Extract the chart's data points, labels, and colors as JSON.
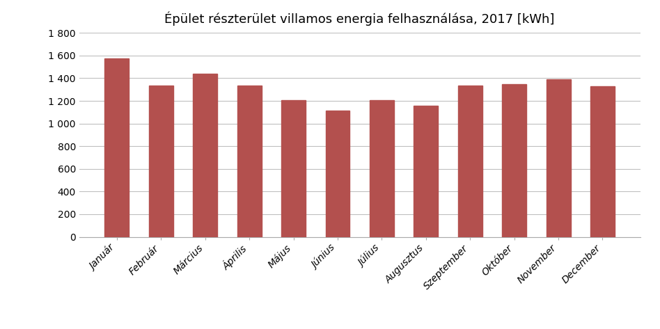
{
  "title": "Épület részterület villamos energia felhasználása, 2017 [kWh]",
  "categories": [
    "Január",
    "Február",
    "Március",
    "Április",
    "Május",
    "Június",
    "Július",
    "Augusztus",
    "Szeptember",
    "Október",
    "November",
    "December"
  ],
  "values": [
    1575,
    1335,
    1440,
    1335,
    1205,
    1115,
    1205,
    1155,
    1335,
    1345,
    1390,
    1330
  ],
  "bar_color": "#b3504e",
  "ylim": [
    0,
    1800
  ],
  "yticks": [
    0,
    200,
    400,
    600,
    800,
    1000,
    1200,
    1400,
    1600,
    1800
  ],
  "ytick_labels": [
    "0",
    "200",
    "400",
    "600",
    "800",
    "1 000",
    "1 200",
    "1 400",
    "1 600",
    "1 800"
  ],
  "background_color": "#ffffff",
  "grid_color": "#c0c0c0",
  "title_fontsize": 13,
  "tick_fontsize": 10,
  "bar_width": 0.55
}
